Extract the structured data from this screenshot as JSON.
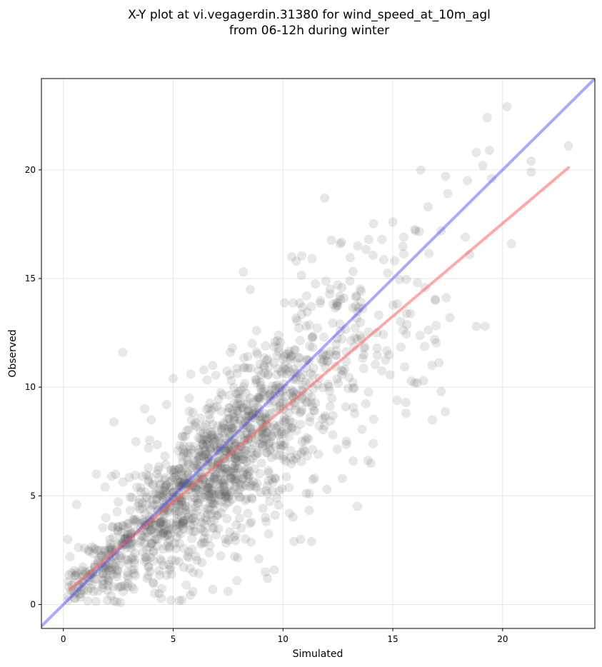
{
  "chart_data": {
    "type": "scatter",
    "title_lines": [
      "X-Y plot at vi.vegagerdin.31380 for wind_speed_at_10m_agl",
      "from 06-12h during winter"
    ],
    "xlabel": "Simulated",
    "ylabel": "Observed",
    "xlim": [
      -1,
      24.2
    ],
    "ylim": [
      -1.1,
      24.2
    ],
    "xticks": [
      0,
      5,
      10,
      15,
      20
    ],
    "yticks": [
      0,
      5,
      10,
      15,
      20
    ],
    "grid": true,
    "points_color": "#555555",
    "reference_line": {
      "color": "#4040ff",
      "x": [
        -1,
        24.2
      ],
      "y": [
        -1,
        24.2
      ]
    },
    "fit_line": {
      "color": "#ff6060",
      "x": [
        0.3,
        23
      ],
      "y": [
        0.7,
        20.1
      ]
    },
    "outliers": [
      [
        2.7,
        11.6
      ],
      [
        8.2,
        15.3
      ],
      [
        11.9,
        18.7
      ],
      [
        10.4,
        16.0
      ],
      [
        10.6,
        15.8
      ],
      [
        15.0,
        17.6
      ],
      [
        16.6,
        18.3
      ],
      [
        17.2,
        17.2
      ],
      [
        17.4,
        19.7
      ],
      [
        17.5,
        18.9
      ],
      [
        18.4,
        19.5
      ],
      [
        18.8,
        20.8
      ],
      [
        19.1,
        20.2
      ],
      [
        19.4,
        20.9
      ],
      [
        19.3,
        22.4
      ],
      [
        20.2,
        22.9
      ],
      [
        21.3,
        20.4
      ],
      [
        21.3,
        19.9
      ],
      [
        23.0,
        21.1
      ],
      [
        20.4,
        16.6
      ],
      [
        19.5,
        19.6
      ],
      [
        19.2,
        12.8
      ],
      [
        18.8,
        12.8
      ],
      [
        18.5,
        16.1
      ],
      [
        18.3,
        16.9
      ],
      [
        17.6,
        13.2
      ],
      [
        17.2,
        9.8
      ],
      [
        16.9,
        12.2
      ],
      [
        16.8,
        8.5
      ],
      [
        16.4,
        10.3
      ],
      [
        16.0,
        10.2
      ],
      [
        15.6,
        9.3
      ],
      [
        15.2,
        9.4
      ],
      [
        15.6,
        8.8
      ],
      [
        14.0,
        6.5
      ],
      [
        13.2,
        6.6
      ],
      [
        12.7,
        5.8
      ],
      [
        12.0,
        5.3
      ],
      [
        11.2,
        5.1
      ],
      [
        11.3,
        2.9
      ],
      [
        10.8,
        3.0
      ],
      [
        10.5,
        2.9
      ],
      [
        10.3,
        4.2
      ],
      [
        9.6,
        1.6
      ],
      [
        9.2,
        1.5
      ],
      [
        9.3,
        1.2
      ],
      [
        8.9,
        2.1
      ],
      [
        7.9,
        1.1
      ],
      [
        7.5,
        0.6
      ],
      [
        6.8,
        0.7
      ],
      [
        5.9,
        0.6
      ],
      [
        5.4,
        0.2
      ],
      [
        4.9,
        0.2
      ],
      [
        2.6,
        0.1
      ],
      [
        2.3,
        8.4
      ],
      [
        3.3,
        7.5
      ],
      [
        3.7,
        9.0
      ],
      [
        4.0,
        8.5
      ],
      [
        4.7,
        9.2
      ],
      [
        5.0,
        10.4
      ],
      [
        5.8,
        10.6
      ],
      [
        6.4,
        10.8
      ],
      [
        6.8,
        11.0
      ],
      [
        7.6,
        11.6
      ],
      [
        8.6,
        12.0
      ],
      [
        9.2,
        11.9
      ],
      [
        0.5,
        0.5
      ],
      [
        0.4,
        0.9
      ],
      [
        1.0,
        1.5
      ],
      [
        0.2,
        3.0
      ],
      [
        0.3,
        2.2
      ],
      [
        0.6,
        4.6
      ],
      [
        1.5,
        6.0
      ],
      [
        2.2,
        5.9
      ],
      [
        1.9,
        5.4
      ],
      [
        13.9,
        16.8
      ],
      [
        13.4,
        16.5
      ],
      [
        12.6,
        16.6
      ],
      [
        14.5,
        16.8
      ],
      [
        15.5,
        16.9
      ]
    ]
  }
}
